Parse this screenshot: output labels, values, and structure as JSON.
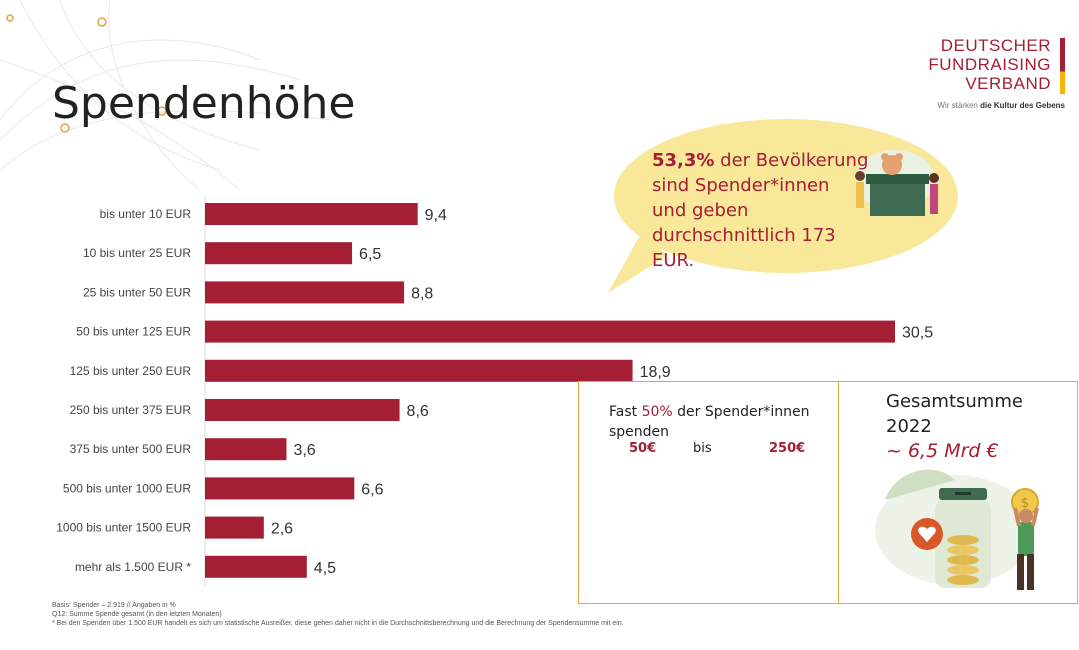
{
  "slide": {
    "title": "Spendenhöhe"
  },
  "logo": {
    "line1": "DEUTSCHER",
    "line2": "FUNDRAISING",
    "line3": "VERBAND",
    "tagline_pre": "Wir stärken ",
    "tagline_bold": "die Kultur des Gebens"
  },
  "chart_data": {
    "type": "bar",
    "orientation": "horizontal",
    "title": "",
    "xlabel": "",
    "ylabel": "",
    "unit": "%",
    "xlim": [
      0,
      30.5
    ],
    "categories": [
      "bis unter 10 EUR",
      "10 bis unter 25 EUR",
      "25 bis unter 50 EUR",
      "50 bis unter 125 EUR",
      "125 bis unter 250 EUR",
      "250 bis unter 375 EUR",
      "375 bis unter 500 EUR",
      "500 bis unter 1000 EUR",
      "1000 bis unter 1500 EUR",
      "mehr als 1.500  EUR *"
    ],
    "values": [
      9.4,
      6.5,
      8.8,
      30.5,
      18.9,
      8.6,
      3.6,
      6.6,
      2.6,
      4.5
    ],
    "value_labels": [
      "9,4",
      "6,5",
      "8,8",
      "30,5",
      "18,9",
      "8,6",
      "3,6",
      "6,6",
      "2,6",
      "4,5"
    ],
    "bar_color": "#a41e34",
    "grid": false
  },
  "bubble": {
    "pct": "53,3%",
    "text1": " der Bevölkerung",
    "text2": "sind  Spender*innen",
    "text3": "und geben",
    "text4": "durchschnittlich 173 EUR.",
    "color": "#f9e79a"
  },
  "box_left": {
    "pre": "Fast ",
    "pct": "50%",
    "post": " der Spender*innen",
    "line2": "spenden",
    "amount_low": "50€",
    "bis": "bis",
    "amount_high": "250€"
  },
  "box_right": {
    "line1": "Gesamtsumme",
    "line2": "2022",
    "approx": "~ 6,5 Mrd €"
  },
  "footnotes": {
    "line1": "Basis: Spender – 2.919 // Angaben in %",
    "line2": "Q12: Summe Spende gesamt (in den letzten Monaten)",
    "line3": "* Bei den Spenden über 1.500 EUR handelt es sich um statistische Ausreißer, diese gehen daher nicht in die Durchschnittsberechnung und die Berechnung der Spendensumme mit ein."
  },
  "colors": {
    "brand": "#a41e34",
    "accent": "#e8a33a",
    "bubble": "#f9e79a"
  }
}
